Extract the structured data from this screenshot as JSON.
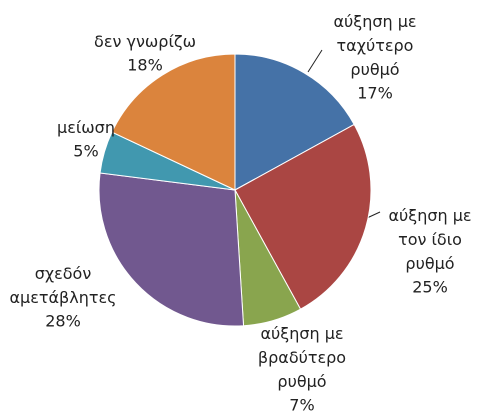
{
  "chart_data": {
    "type": "pie",
    "categories": [
      "αύξηση με ταχύτερο ρυθμό",
      "αύξηση με τον ίδιο ρυθμό",
      "αύξηση με βραδύτερο ρυθμό",
      "σχεδόν αμετάβλητες",
      "μείωση",
      "δεν γνωρίζω"
    ],
    "values": [
      17,
      25,
      7,
      28,
      5,
      18
    ],
    "value_labels": [
      "17%",
      "25%",
      "7%",
      "28%",
      "5%",
      "18%"
    ],
    "colors": [
      "#4572a7",
      "#aa4643",
      "#89a54e",
      "#71588f",
      "#4198af",
      "#db843d"
    ]
  }
}
